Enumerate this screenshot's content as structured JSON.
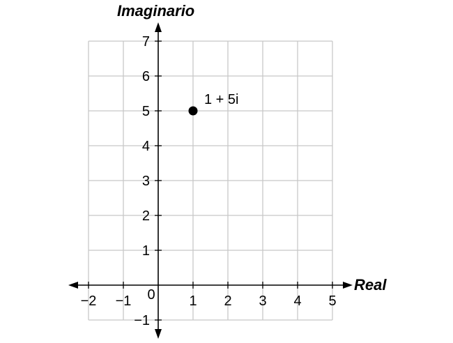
{
  "chart_data": {
    "type": "scatter",
    "xlabel": "Real",
    "ylabel": "Imaginario",
    "xlim": [
      -2,
      5
    ],
    "ylim": [
      -1,
      7
    ],
    "x_ticks": [
      "−2",
      "−1",
      "0",
      "1",
      "2",
      "3",
      "4",
      "5"
    ],
    "x_tick_values": [
      -2,
      -1,
      0,
      1,
      2,
      3,
      4,
      5
    ],
    "y_ticks": [
      "−1",
      "1",
      "2",
      "3",
      "4",
      "5",
      "6",
      "7"
    ],
    "y_tick_values": [
      -1,
      1,
      2,
      3,
      4,
      5,
      6,
      7
    ],
    "grid": true,
    "points": [
      {
        "x": 1,
        "y": 5,
        "label": "1 + 5i"
      }
    ],
    "colors": {
      "grid": "#c8c8c8",
      "axis": "#000000",
      "point": "#000000"
    }
  }
}
